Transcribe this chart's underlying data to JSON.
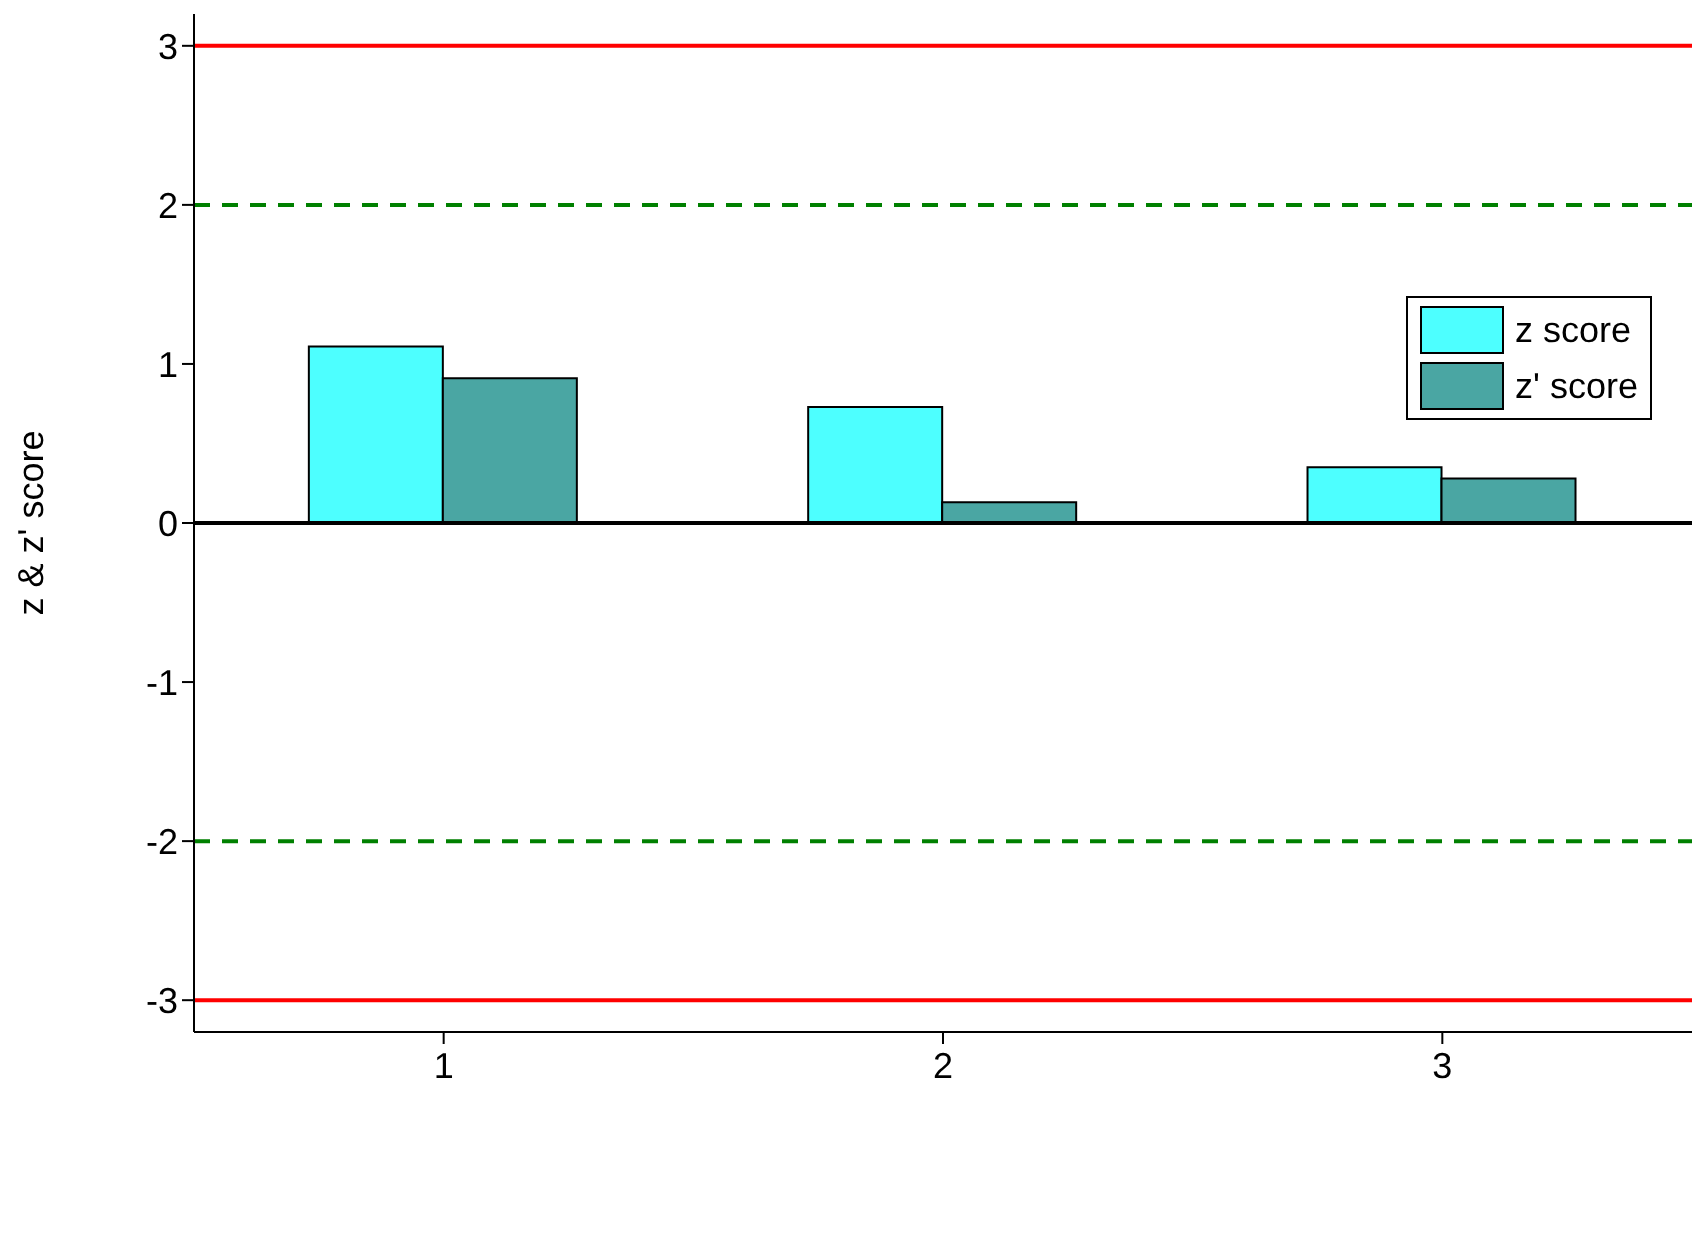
{
  "chart_data": {
    "type": "bar",
    "ylabel": "z & z' score",
    "categories": [
      "1",
      "2",
      "3"
    ],
    "series": [
      {
        "name": "z score",
        "color": "#4dffff",
        "values": [
          1.11,
          0.73,
          0.35
        ]
      },
      {
        "name": "z' score",
        "color": "#4aa6a3",
        "values": [
          0.91,
          0.13,
          0.28
        ]
      }
    ],
    "ylim": [
      -3.2,
      3.2
    ],
    "yticks": [
      -3,
      -2,
      -1,
      0,
      1,
      2,
      3
    ],
    "ref_lines": [
      {
        "axis": "y",
        "value": 3,
        "color": "#ff0000",
        "line_style": "solid"
      },
      {
        "axis": "y",
        "value": -3,
        "color": "#ff0000",
        "line_style": "solid"
      },
      {
        "axis": "y",
        "value": 2,
        "color": "#008000",
        "line_style": "dashed"
      },
      {
        "axis": "y",
        "value": -2,
        "color": "#008000",
        "line_style": "dashed"
      },
      {
        "axis": "y",
        "value": 0,
        "color": "#000000",
        "line_style": "solid"
      }
    ],
    "grid": false,
    "legend": "top right"
  }
}
